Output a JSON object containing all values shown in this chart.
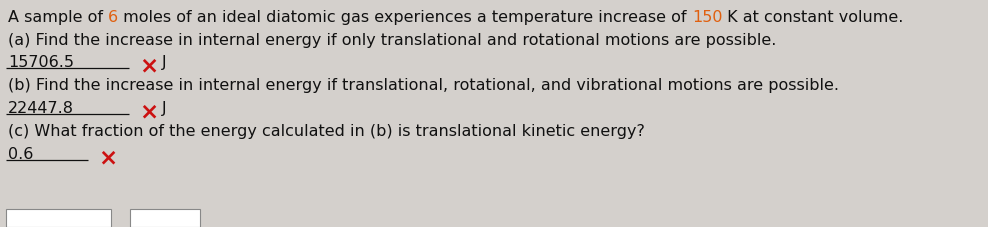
{
  "bg_color": "#d4d0cc",
  "text_color": "#111111",
  "orange_color": "#e06010",
  "red_color": "#cc1111",
  "figwidth": 9.88,
  "figheight": 2.28,
  "dpi": 100,
  "line1_p1": "A sample of ",
  "line1_o1": "6",
  "line1_p2": " moles of an ideal diatomic gas experiences a temperature increase of ",
  "line1_o2": "150",
  "line1_p3": " K at constant volume.",
  "line2": "(a) Find the increase in internal energy if only translational and rotational motions are possible.",
  "line3_answer": "15706.5",
  "line3_unit": "J",
  "line4": "(b) Find the increase in internal energy if translational, rotational, and vibrational motions are possible.",
  "line5_answer": "22447.8",
  "line5_unit": "J",
  "line6": "(c) What fraction of the energy calculated in (b) is translational kinetic energy?",
  "line7_answer": "0.6",
  "fontsize": 11.5,
  "x_mark": "×"
}
